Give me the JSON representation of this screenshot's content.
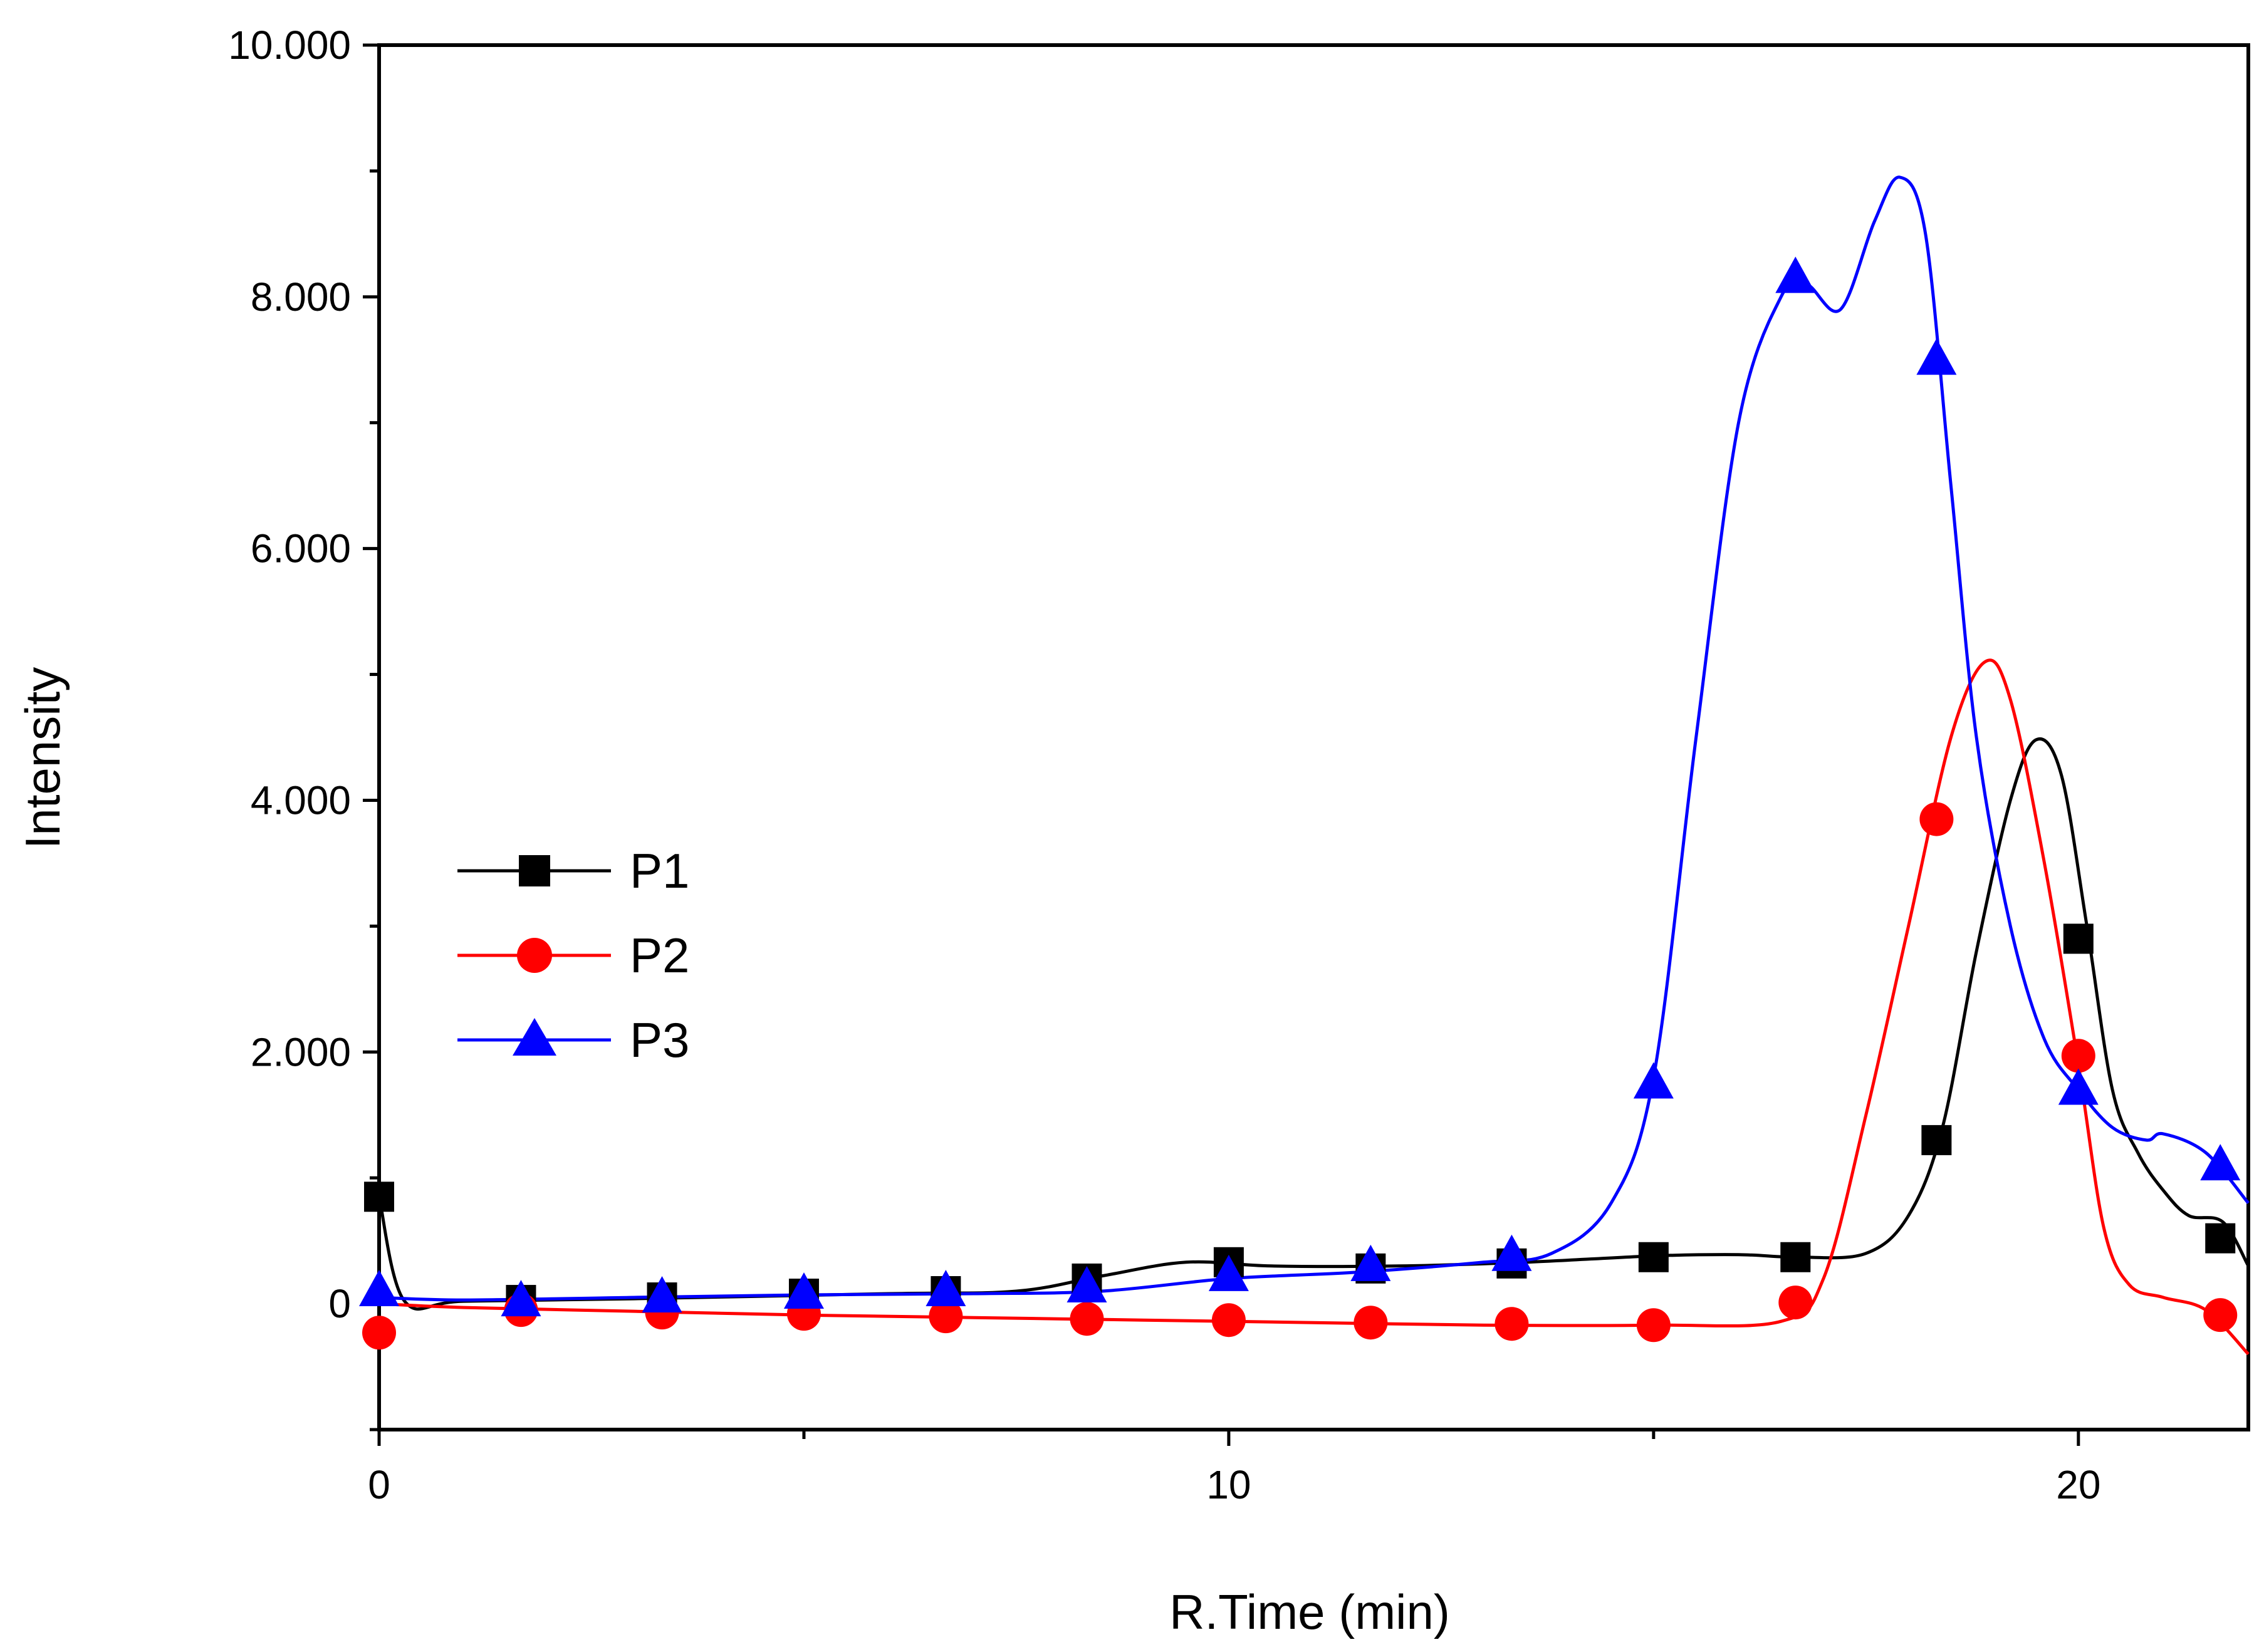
{
  "chart_data": {
    "type": "line",
    "title": "",
    "xlabel": "R.Time (min)",
    "ylabel": "Intensity",
    "xlim": [
      0,
      22
    ],
    "ylim": [
      -1000,
      10000
    ],
    "x_ticks": [
      0,
      10,
      20
    ],
    "x_tick_labels": [
      "0",
      "10",
      "20"
    ],
    "x_minor_ticks": [
      5,
      15
    ],
    "y_ticks": [
      0,
      2000,
      4000,
      6000,
      8000,
      10000
    ],
    "y_tick_labels": [
      "0",
      "2.000",
      "4.000",
      "6.000",
      "8.000",
      "10.000"
    ],
    "y_minor_ticks": [
      -1000,
      1000,
      3000,
      5000,
      7000,
      9000
    ],
    "legend_position": "middle-left",
    "series": [
      {
        "name": "P1",
        "color": "#000000",
        "marker": "square",
        "line": [
          [
            0,
            850
          ],
          [
            0.3,
            20
          ],
          [
            1,
            20
          ],
          [
            3,
            40
          ],
          [
            6,
            80
          ],
          [
            7.5,
            100
          ],
          [
            8.5,
            220
          ],
          [
            9.5,
            330
          ],
          [
            10.5,
            300
          ],
          [
            12,
            300
          ],
          [
            13.5,
            330
          ],
          [
            15,
            380
          ],
          [
            16,
            390
          ],
          [
            16.7,
            370
          ],
          [
            17.5,
            400
          ],
          [
            18,
            700
          ],
          [
            18.4,
            1400
          ],
          [
            18.8,
            2800
          ],
          [
            19.2,
            4000
          ],
          [
            19.5,
            4480
          ],
          [
            19.8,
            4200
          ],
          [
            20.1,
            3000
          ],
          [
            20.4,
            1700
          ],
          [
            20.7,
            1200
          ],
          [
            21,
            900
          ],
          [
            21.3,
            700
          ],
          [
            21.7,
            650
          ],
          [
            22,
            300
          ]
        ],
        "markers": [
          [
            0,
            850
          ],
          [
            1.67,
            30
          ],
          [
            3.33,
            50
          ],
          [
            5,
            80
          ],
          [
            6.67,
            100
          ],
          [
            8.33,
            200
          ],
          [
            10,
            330
          ],
          [
            11.67,
            280
          ],
          [
            13.33,
            320
          ],
          [
            15,
            370
          ],
          [
            16.67,
            370
          ],
          [
            18.33,
            1300
          ],
          [
            20,
            2900
          ],
          [
            21.67,
            520
          ]
        ]
      },
      {
        "name": "P2",
        "color": "#ff0000",
        "marker": "circle",
        "line": [
          [
            0,
            0
          ],
          [
            1,
            -30
          ],
          [
            3,
            -60
          ],
          [
            5,
            -90
          ],
          [
            7,
            -110
          ],
          [
            9,
            -130
          ],
          [
            11,
            -150
          ],
          [
            13,
            -170
          ],
          [
            15,
            -170
          ],
          [
            16.5,
            -140
          ],
          [
            17,
            200
          ],
          [
            17.5,
            1500
          ],
          [
            18,
            3000
          ],
          [
            18.5,
            4500
          ],
          [
            18.9,
            5100
          ],
          [
            19.2,
            4800
          ],
          [
            19.6,
            3500
          ],
          [
            20,
            1900
          ],
          [
            20.3,
            600
          ],
          [
            20.6,
            150
          ],
          [
            21,
            50
          ],
          [
            21.5,
            -50
          ],
          [
            22,
            -400
          ]
        ],
        "markers": [
          [
            0,
            -230
          ],
          [
            1.67,
            -50
          ],
          [
            3.33,
            -70
          ],
          [
            5,
            -80
          ],
          [
            6.67,
            -100
          ],
          [
            8.33,
            -120
          ],
          [
            10,
            -130
          ],
          [
            11.67,
            -150
          ],
          [
            13.33,
            -160
          ],
          [
            15,
            -170
          ],
          [
            16.67,
            10
          ],
          [
            18.33,
            3850
          ],
          [
            20,
            1970
          ],
          [
            21.67,
            -90
          ]
        ]
      },
      {
        "name": "P3",
        "color": "#0000ff",
        "marker": "triangle",
        "line": [
          [
            0,
            50
          ],
          [
            1,
            30
          ],
          [
            3,
            50
          ],
          [
            5,
            70
          ],
          [
            7,
            80
          ],
          [
            8.5,
            100
          ],
          [
            10,
            200
          ],
          [
            11.5,
            250
          ],
          [
            13,
            330
          ],
          [
            13.8,
            400
          ],
          [
            14.5,
            800
          ],
          [
            15,
            1800
          ],
          [
            15.5,
            4500
          ],
          [
            16,
            7000
          ],
          [
            16.5,
            8000
          ],
          [
            16.8,
            8100
          ],
          [
            17.2,
            7900
          ],
          [
            17.6,
            8600
          ],
          [
            17.9,
            8950
          ],
          [
            18.2,
            8500
          ],
          [
            18.5,
            6500
          ],
          [
            18.8,
            4500
          ],
          [
            19.2,
            3000
          ],
          [
            19.6,
            2100
          ],
          [
            20,
            1700
          ],
          [
            20.4,
            1400
          ],
          [
            20.8,
            1300
          ],
          [
            21,
            1350
          ],
          [
            21.5,
            1200
          ],
          [
            22,
            800
          ]
        ],
        "markers": [
          [
            0,
            100
          ],
          [
            1.67,
            20
          ],
          [
            3.33,
            50
          ],
          [
            5,
            80
          ],
          [
            6.67,
            100
          ],
          [
            8.33,
            130
          ],
          [
            10,
            220
          ],
          [
            11.67,
            300
          ],
          [
            13.33,
            380
          ],
          [
            15,
            1750
          ],
          [
            16.67,
            8150
          ],
          [
            18.33,
            7500
          ],
          [
            20,
            1700
          ],
          [
            21.67,
            1100
          ]
        ]
      }
    ]
  }
}
